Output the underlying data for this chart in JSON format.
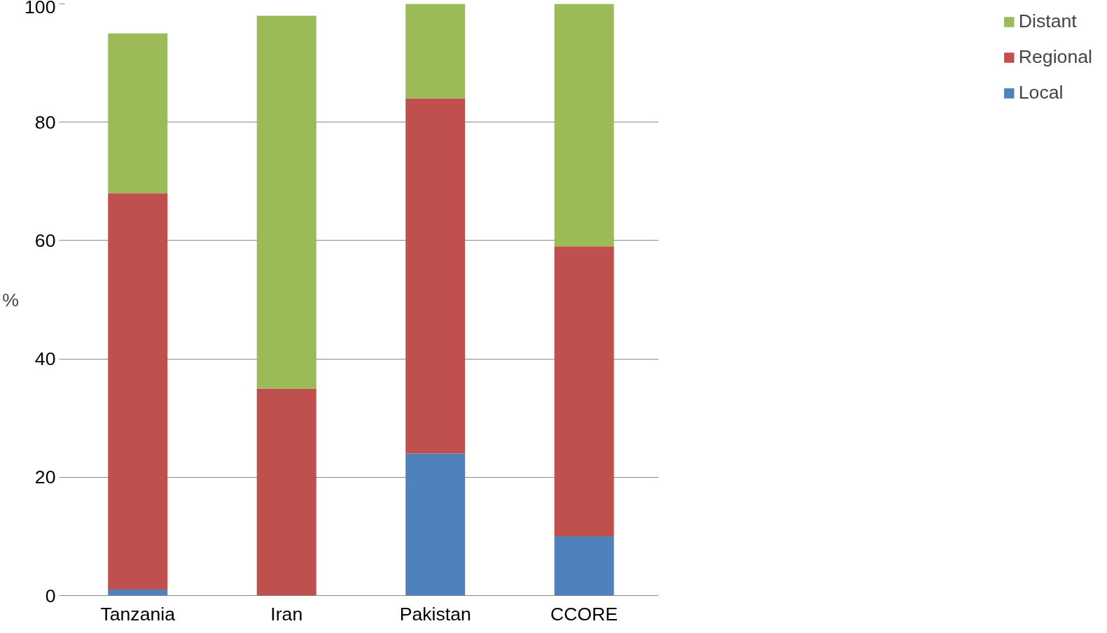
{
  "chart_data": {
    "type": "bar",
    "stacked": true,
    "ylabel": "%",
    "categories": [
      "Tanzania",
      "Iran",
      "Pakistan",
      "CCORE"
    ],
    "series": [
      {
        "name": "Local",
        "color": "#4f81bd",
        "values": [
          1,
          0,
          24,
          10
        ]
      },
      {
        "name": "Regional",
        "color": "#c0504d",
        "values": [
          67,
          35,
          60,
          49
        ]
      },
      {
        "name": "Distant",
        "color": "#9bbb59",
        "values": [
          27,
          63,
          16,
          41
        ]
      }
    ],
    "ylim": [
      0,
      100
    ],
    "yticks": [
      0,
      20,
      40,
      60,
      80,
      100
    ],
    "grid": "y",
    "legend": "right"
  }
}
